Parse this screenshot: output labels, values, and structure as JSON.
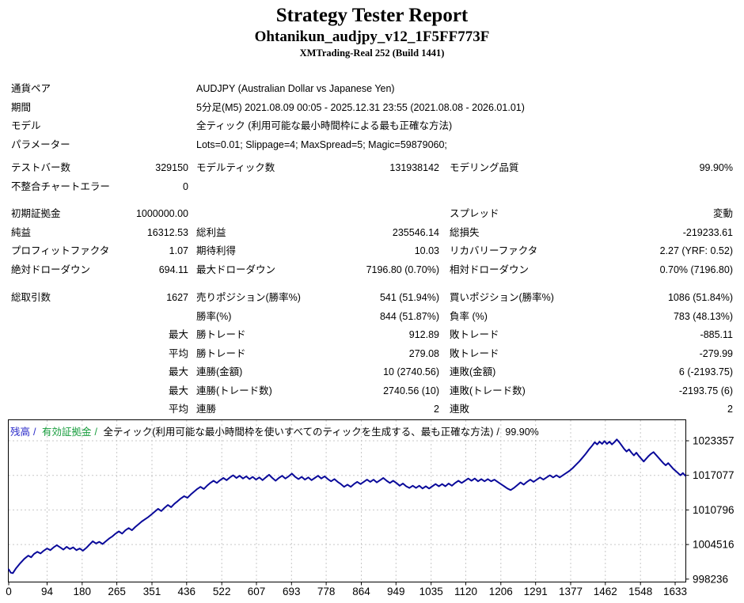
{
  "header": {
    "title": "Strategy Tester Report",
    "subtitle": "Ohtanikun_audjpy_v12_1F5FF773F",
    "server": "XMTrading-Real 252 (Build 1441)"
  },
  "report": {
    "sections": [
      {
        "rows": [
          [
            "通貨ペア",
            "",
            "AUDJPY (Australian Dollar vs Japanese Yen)",
            "",
            "",
            ""
          ],
          [
            "期間",
            "",
            "5分足(M5) 2021.08.09 00:05 - 2025.12.31 23:55 (2021.08.08 - 2026.01.01)",
            "",
            "",
            ""
          ],
          [
            "モデル",
            "",
            "全ティック (利用可能な最小時間枠による最も正確な方法)",
            "",
            "",
            ""
          ],
          [
            "パラメーター",
            "",
            "Lots=0.01; Slippage=4; MaxSpread=5; Magic=59879060;",
            "",
            "",
            ""
          ]
        ]
      },
      {
        "rows": [
          [
            "テストバー数",
            "329150",
            "モデルティック数",
            "131938142",
            "モデリング品質",
            "99.90%"
          ],
          [
            "不整合チャートエラー",
            "0",
            "",
            "",
            "",
            ""
          ]
        ]
      },
      {
        "rows": [
          [
            "初期証拠金",
            "1000000.00",
            "",
            "",
            "スプレッド",
            "変動"
          ],
          [
            "純益",
            "16312.53",
            "総利益",
            "235546.14",
            "総損失",
            "-219233.61"
          ],
          [
            "プロフィットファクタ",
            "1.07",
            "期待利得",
            "10.03",
            "リカバリーファクタ",
            "2.27 (YRF: 0.52)"
          ],
          [
            "絶対ドローダウン",
            "694.11",
            "最大ドローダウン",
            "7196.80 (0.70%)",
            "相対ドローダウン",
            "0.70% (7196.80)"
          ]
        ]
      },
      {
        "rows": [
          [
            "総取引数",
            "1627",
            "売りポジション(勝率%)",
            "541 (51.94%)",
            "買いポジション(勝率%)",
            "1086 (51.84%)"
          ],
          [
            "",
            "",
            "勝率(%)",
            "844 (51.87%)",
            "負率 (%)",
            "783 (48.13%)"
          ],
          [
            "",
            "最大",
            "勝トレード",
            "912.89",
            "敗トレード",
            "-885.11"
          ],
          [
            "",
            "平均",
            "勝トレード",
            "279.08",
            "敗トレード",
            "-279.99"
          ],
          [
            "",
            "最大",
            "連勝(金額)",
            "10 (2740.56)",
            "連敗(金額)",
            "6 (-2193.75)"
          ],
          [
            "",
            "最大",
            "連勝(トレード数)",
            "2740.56 (10)",
            "連敗(トレード数)",
            "-2193.75 (6)"
          ],
          [
            "",
            "平均",
            "連勝",
            "2",
            "連敗",
            "2"
          ]
        ]
      }
    ]
  },
  "chart_data": {
    "type": "line",
    "legend": {
      "balance_label": "残高",
      "equity_label": "有効証拠金",
      "model_label": "全ティック(利用可能な最小時間枠を使いすべてのティックを生成する、最も正確な方法)",
      "quality_label": "99.90%",
      "separator": "/"
    },
    "colors": {
      "balance_line": "#0a0a9a",
      "balance_legend": "#2828c8",
      "equity_legend": "#169c3c",
      "grid": "#c8c8c8",
      "axis": "#000000"
    },
    "x_ticks": [
      0,
      94,
      180,
      265,
      351,
      436,
      522,
      607,
      693,
      778,
      864,
      949,
      1035,
      1120,
      1206,
      1291,
      1377,
      1462,
      1548,
      1633
    ],
    "y_ticks": [
      998236,
      1004516,
      1010796,
      1017077,
      1023357
    ],
    "x_range": [
      0,
      1660
    ],
    "y_range": [
      997700,
      1027170
    ],
    "grid": true,
    "legend_position": "top-left",
    "series": [
      {
        "name": "残高",
        "points": [
          [
            0,
            1000000
          ],
          [
            5,
            999400
          ],
          [
            10,
            999320
          ],
          [
            18,
            1000200
          ],
          [
            28,
            1001100
          ],
          [
            38,
            1001900
          ],
          [
            48,
            1002500
          ],
          [
            55,
            1002200
          ],
          [
            62,
            1002800
          ],
          [
            70,
            1003200
          ],
          [
            78,
            1002900
          ],
          [
            86,
            1003400
          ],
          [
            94,
            1003800
          ],
          [
            102,
            1003500
          ],
          [
            110,
            1004000
          ],
          [
            118,
            1004400
          ],
          [
            126,
            1004000
          ],
          [
            134,
            1003600
          ],
          [
            142,
            1004100
          ],
          [
            150,
            1003700
          ],
          [
            158,
            1004000
          ],
          [
            166,
            1003500
          ],
          [
            174,
            1003800
          ],
          [
            182,
            1003400
          ],
          [
            190,
            1003900
          ],
          [
            198,
            1004500
          ],
          [
            206,
            1005100
          ],
          [
            214,
            1004700
          ],
          [
            222,
            1005000
          ],
          [
            230,
            1004600
          ],
          [
            238,
            1005100
          ],
          [
            246,
            1005600
          ],
          [
            254,
            1006000
          ],
          [
            262,
            1006500
          ],
          [
            270,
            1006900
          ],
          [
            278,
            1006500
          ],
          [
            286,
            1007100
          ],
          [
            294,
            1007500
          ],
          [
            302,
            1007100
          ],
          [
            310,
            1007700
          ],
          [
            318,
            1008200
          ],
          [
            326,
            1008700
          ],
          [
            334,
            1009100
          ],
          [
            342,
            1009500
          ],
          [
            350,
            1010000
          ],
          [
            358,
            1010500
          ],
          [
            366,
            1011000
          ],
          [
            374,
            1010600
          ],
          [
            382,
            1011200
          ],
          [
            390,
            1011700
          ],
          [
            398,
            1011300
          ],
          [
            406,
            1011900
          ],
          [
            414,
            1012400
          ],
          [
            422,
            1012900
          ],
          [
            430,
            1013300
          ],
          [
            438,
            1013000
          ],
          [
            446,
            1013600
          ],
          [
            454,
            1014100
          ],
          [
            462,
            1014600
          ],
          [
            470,
            1015000
          ],
          [
            478,
            1014600
          ],
          [
            486,
            1015200
          ],
          [
            494,
            1015700
          ],
          [
            502,
            1016100
          ],
          [
            510,
            1015700
          ],
          [
            518,
            1016200
          ],
          [
            526,
            1016600
          ],
          [
            534,
            1016200
          ],
          [
            542,
            1016700
          ],
          [
            550,
            1017100
          ],
          [
            558,
            1016600
          ],
          [
            566,
            1017000
          ],
          [
            574,
            1016500
          ],
          [
            582,
            1016900
          ],
          [
            590,
            1016400
          ],
          [
            598,
            1016800
          ],
          [
            606,
            1016300
          ],
          [
            614,
            1016700
          ],
          [
            622,
            1016200
          ],
          [
            630,
            1016700
          ],
          [
            638,
            1017200
          ],
          [
            646,
            1016600
          ],
          [
            654,
            1016100
          ],
          [
            662,
            1016600
          ],
          [
            670,
            1017000
          ],
          [
            678,
            1016500
          ],
          [
            686,
            1016900
          ],
          [
            694,
            1017400
          ],
          [
            702,
            1016800
          ],
          [
            710,
            1016400
          ],
          [
            718,
            1016800
          ],
          [
            726,
            1016300
          ],
          [
            734,
            1016700
          ],
          [
            742,
            1016200
          ],
          [
            750,
            1016600
          ],
          [
            758,
            1017000
          ],
          [
            766,
            1016500
          ],
          [
            774,
            1016900
          ],
          [
            782,
            1016400
          ],
          [
            790,
            1016000
          ],
          [
            798,
            1016400
          ],
          [
            806,
            1015900
          ],
          [
            814,
            1015500
          ],
          [
            822,
            1015000
          ],
          [
            830,
            1015400
          ],
          [
            838,
            1015000
          ],
          [
            846,
            1015500
          ],
          [
            854,
            1015900
          ],
          [
            862,
            1015500
          ],
          [
            870,
            1015900
          ],
          [
            878,
            1016300
          ],
          [
            886,
            1015900
          ],
          [
            894,
            1016300
          ],
          [
            902,
            1015800
          ],
          [
            910,
            1016200
          ],
          [
            918,
            1016600
          ],
          [
            926,
            1016100
          ],
          [
            934,
            1015700
          ],
          [
            942,
            1016100
          ],
          [
            950,
            1015700
          ],
          [
            958,
            1015200
          ],
          [
            966,
            1015600
          ],
          [
            974,
            1015100
          ],
          [
            982,
            1014800
          ],
          [
            990,
            1015200
          ],
          [
            998,
            1014800
          ],
          [
            1006,
            1015200
          ],
          [
            1014,
            1014700
          ],
          [
            1022,
            1015100
          ],
          [
            1030,
            1014700
          ],
          [
            1038,
            1015100
          ],
          [
            1046,
            1015500
          ],
          [
            1054,
            1015100
          ],
          [
            1062,
            1015500
          ],
          [
            1070,
            1015100
          ],
          [
            1078,
            1015600
          ],
          [
            1086,
            1015200
          ],
          [
            1094,
            1015700
          ],
          [
            1102,
            1016100
          ],
          [
            1110,
            1015700
          ],
          [
            1118,
            1016100
          ],
          [
            1126,
            1016500
          ],
          [
            1134,
            1016100
          ],
          [
            1142,
            1016500
          ],
          [
            1150,
            1016000
          ],
          [
            1158,
            1016400
          ],
          [
            1166,
            1016000
          ],
          [
            1174,
            1016400
          ],
          [
            1182,
            1016000
          ],
          [
            1190,
            1016300
          ],
          [
            1198,
            1015900
          ],
          [
            1206,
            1015500
          ],
          [
            1214,
            1015100
          ],
          [
            1222,
            1014700
          ],
          [
            1230,
            1014400
          ],
          [
            1238,
            1014800
          ],
          [
            1246,
            1015300
          ],
          [
            1254,
            1015800
          ],
          [
            1262,
            1015400
          ],
          [
            1270,
            1015900
          ],
          [
            1278,
            1016300
          ],
          [
            1286,
            1015900
          ],
          [
            1294,
            1016300
          ],
          [
            1302,
            1016700
          ],
          [
            1310,
            1016300
          ],
          [
            1318,
            1016700
          ],
          [
            1326,
            1017100
          ],
          [
            1334,
            1016700
          ],
          [
            1342,
            1017100
          ],
          [
            1350,
            1016700
          ],
          [
            1358,
            1017100
          ],
          [
            1366,
            1017500
          ],
          [
            1374,
            1017900
          ],
          [
            1382,
            1018400
          ],
          [
            1390,
            1019000
          ],
          [
            1398,
            1019600
          ],
          [
            1406,
            1020300
          ],
          [
            1414,
            1021000
          ],
          [
            1422,
            1021800
          ],
          [
            1430,
            1022500
          ],
          [
            1436,
            1023100
          ],
          [
            1442,
            1022700
          ],
          [
            1448,
            1023200
          ],
          [
            1454,
            1022800
          ],
          [
            1460,
            1023300
          ],
          [
            1466,
            1022800
          ],
          [
            1472,
            1023200
          ],
          [
            1478,
            1022700
          ],
          [
            1484,
            1023100
          ],
          [
            1490,
            1023600
          ],
          [
            1496,
            1023100
          ],
          [
            1502,
            1022500
          ],
          [
            1508,
            1021900
          ],
          [
            1514,
            1021400
          ],
          [
            1520,
            1021800
          ],
          [
            1526,
            1021200
          ],
          [
            1532,
            1020700
          ],
          [
            1538,
            1021200
          ],
          [
            1544,
            1020600
          ],
          [
            1550,
            1020100
          ],
          [
            1556,
            1019600
          ],
          [
            1562,
            1020100
          ],
          [
            1568,
            1020600
          ],
          [
            1574,
            1021000
          ],
          [
            1580,
            1021300
          ],
          [
            1586,
            1020800
          ],
          [
            1592,
            1020300
          ],
          [
            1598,
            1019800
          ],
          [
            1604,
            1019300
          ],
          [
            1610,
            1018900
          ],
          [
            1616,
            1019300
          ],
          [
            1622,
            1018800
          ],
          [
            1628,
            1018300
          ],
          [
            1634,
            1017900
          ],
          [
            1640,
            1017500
          ],
          [
            1646,
            1017100
          ],
          [
            1652,
            1017500
          ],
          [
            1658,
            1017000
          ]
        ]
      }
    ]
  }
}
